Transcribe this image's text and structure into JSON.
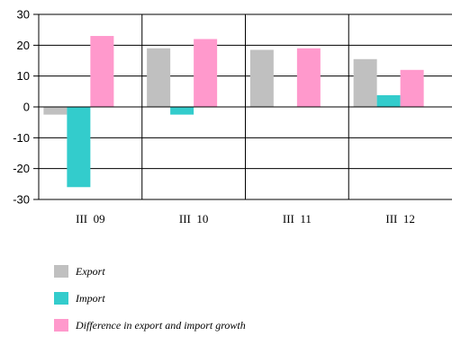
{
  "chart_data": {
    "type": "bar",
    "categories": [
      "III 09",
      "III 10",
      "III 11",
      "III 12"
    ],
    "series": [
      {
        "name": "Export",
        "values": [
          -2.5,
          19,
          18.5,
          15.5
        ],
        "color": "#c0c0c0"
      },
      {
        "name": "Import",
        "values": [
          -26,
          -2.5,
          0,
          3.8
        ],
        "color": "#33cccc"
      },
      {
        "name": "Difference in export and import growth",
        "values": [
          23,
          22,
          19,
          12
        ],
        "color": "#ff99cc"
      }
    ],
    "ylim": [
      -30,
      30
    ],
    "yticks": [
      30,
      20,
      10,
      0,
      -10,
      -20,
      -30
    ],
    "grid": true,
    "legend": "bottom-left",
    "title": "",
    "xlabel": "",
    "ylabel": ""
  }
}
